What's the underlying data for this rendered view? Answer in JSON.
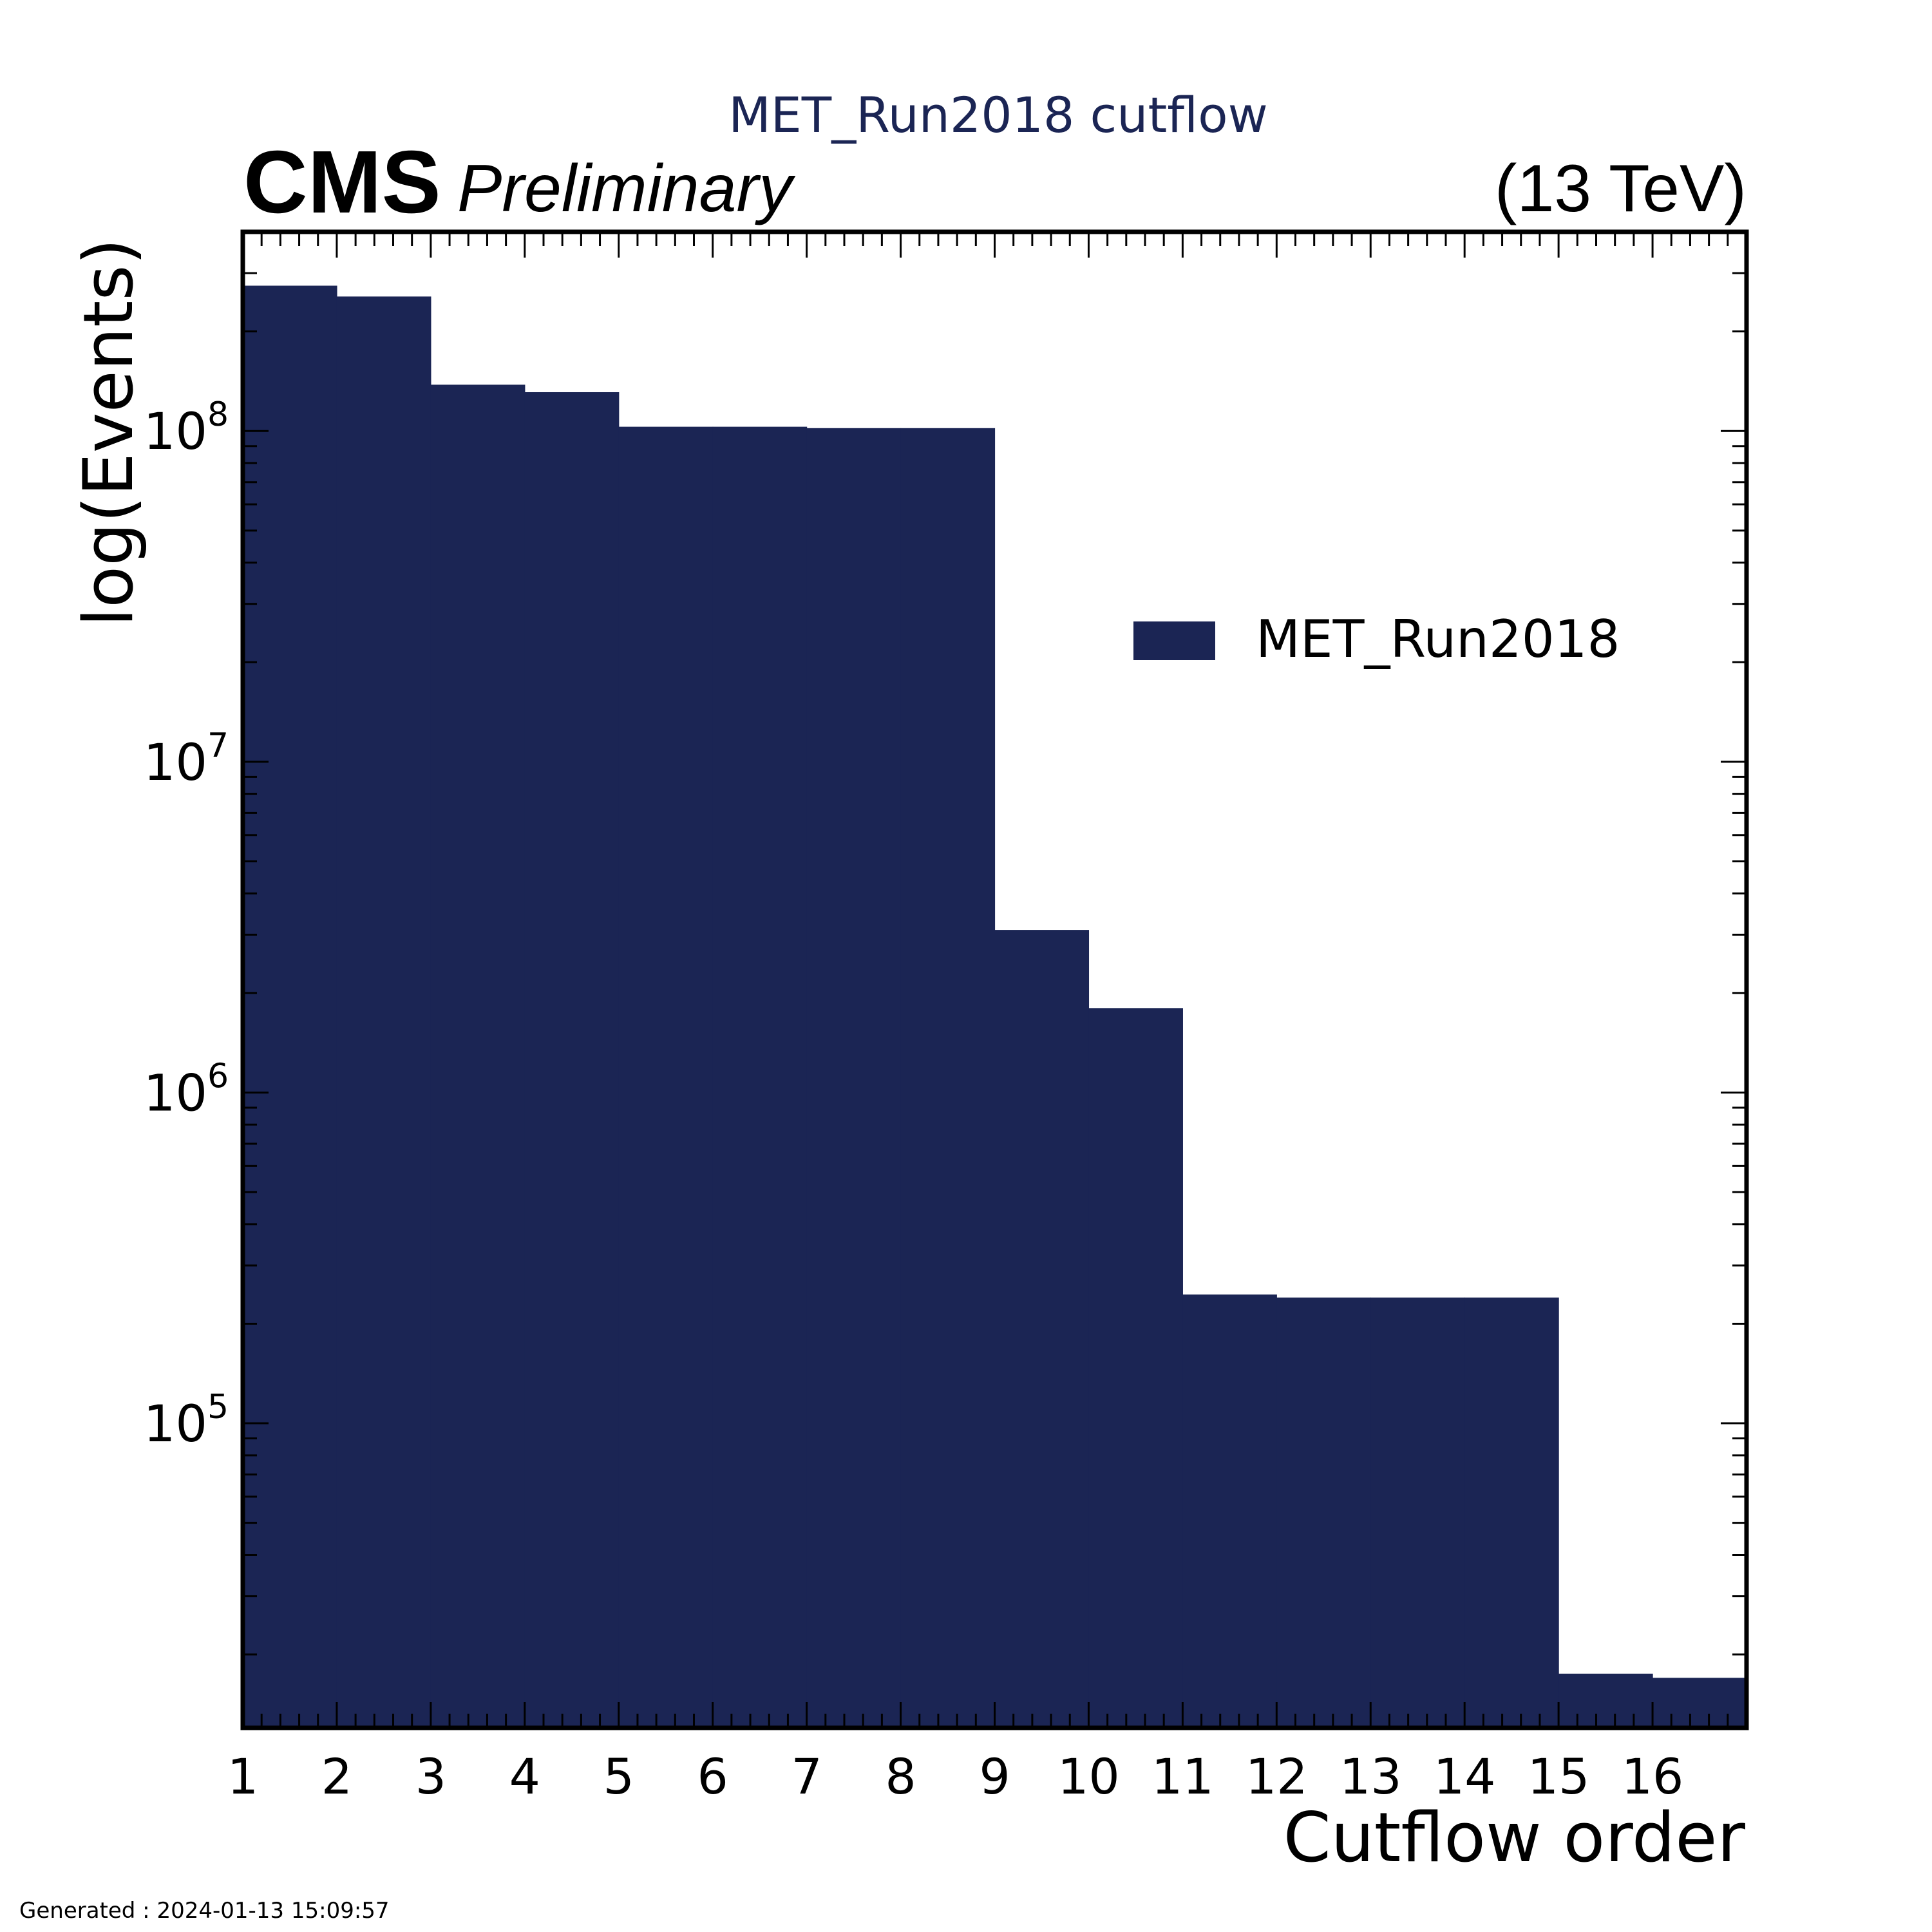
{
  "header": {
    "title": "MET_Run2018 cutflow",
    "experiment": "CMS",
    "status": "Preliminary",
    "energy": "(13 TeV)"
  },
  "footer": {
    "generated": "Generated : 2024-01-13 15:09:57"
  },
  "colors": {
    "fill": "#1b2554",
    "title": "#1b2554",
    "axis": "#000000"
  },
  "chart_data": {
    "type": "bar",
    "histogram": true,
    "title": "MET_Run2018 cutflow",
    "xlabel": "Cutflow order",
    "ylabel": "log(Events)",
    "yscale": "log",
    "xlim": [
      1,
      17
    ],
    "ylim": [
      12000,
      400000000
    ],
    "xticks": [
      1,
      2,
      3,
      4,
      5,
      6,
      7,
      8,
      9,
      10,
      11,
      12,
      13,
      14,
      15,
      16
    ],
    "yticks": [
      {
        "value": 100000,
        "base": "10",
        "exp": "5"
      },
      {
        "value": 1000000,
        "base": "10",
        "exp": "6"
      },
      {
        "value": 10000000,
        "base": "10",
        "exp": "7"
      },
      {
        "value": 100000000,
        "base": "10",
        "exp": "8"
      }
    ],
    "legend": {
      "position": "upper-right",
      "entries": [
        "MET_Run2018"
      ]
    },
    "grid": false,
    "series": [
      {
        "name": "MET_Run2018",
        "bin_edges": [
          1,
          2,
          3,
          4,
          5,
          6,
          7,
          8,
          9,
          10,
          11,
          12,
          13,
          14,
          15,
          16,
          17
        ],
        "values": [
          275000000,
          255000000,
          138000000,
          131000000,
          103000000,
          103000000,
          102000000,
          102000000,
          3100000,
          1800000,
          245000,
          240000,
          240000,
          240000,
          17500,
          17000
        ]
      }
    ]
  }
}
